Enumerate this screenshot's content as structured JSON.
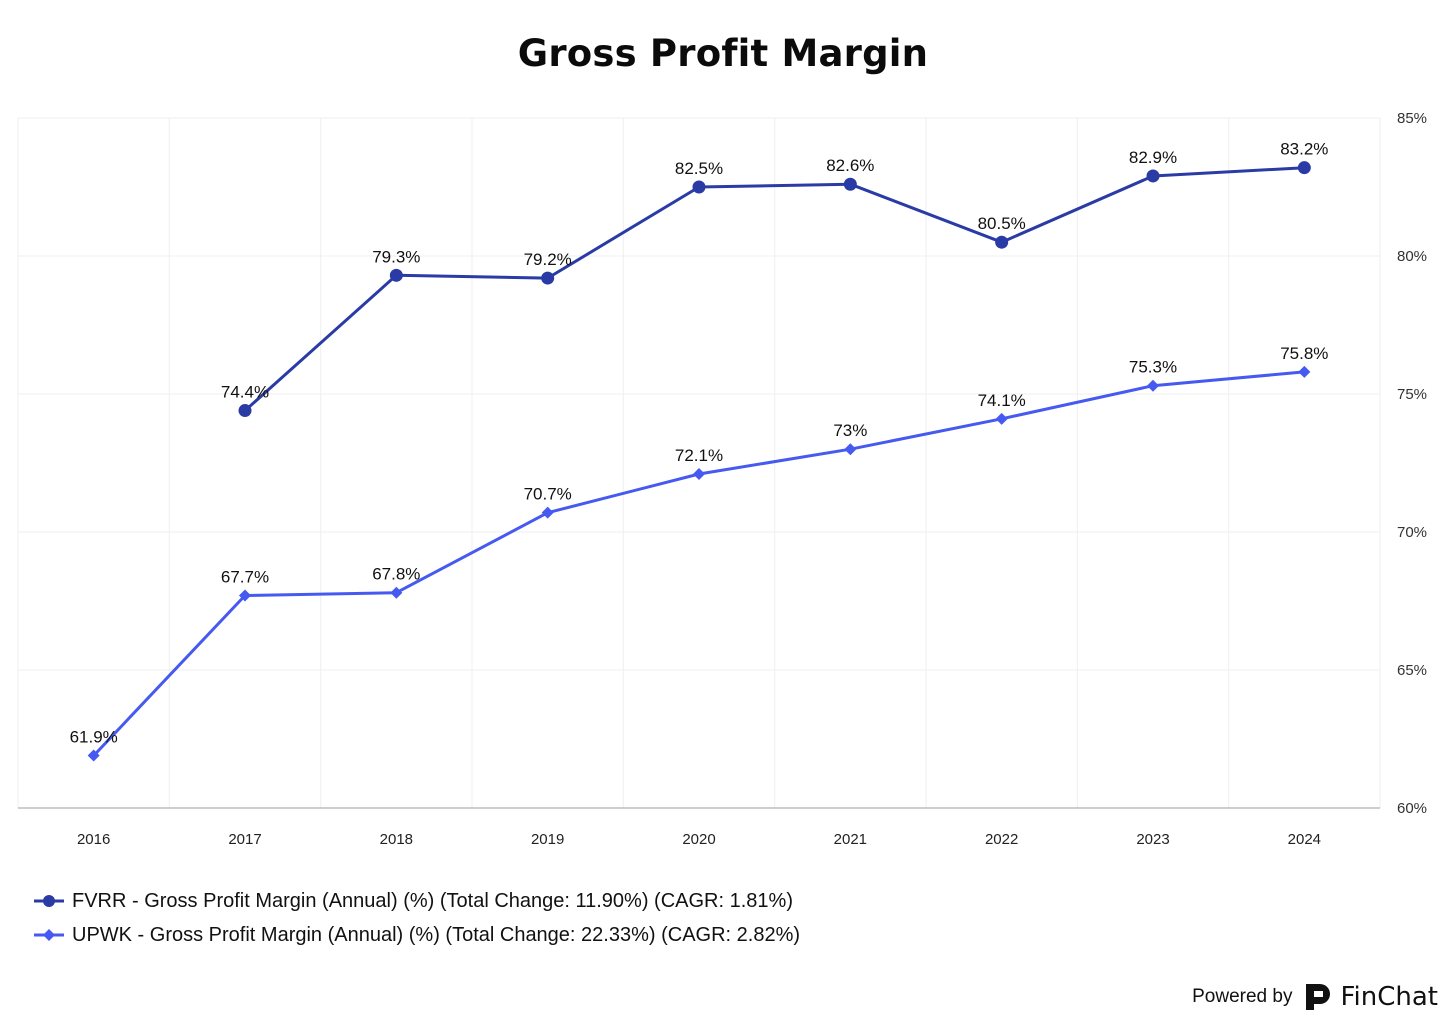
{
  "chart_data": {
    "type": "line",
    "title": "Gross Profit Margin",
    "categories": [
      "2016",
      "2017",
      "2018",
      "2019",
      "2020",
      "2021",
      "2022",
      "2023",
      "2024"
    ],
    "ylim": [
      60,
      85
    ],
    "y_ticks": [
      60,
      65,
      70,
      75,
      80,
      85
    ],
    "y_tick_labels": [
      "60%",
      "65%",
      "70%",
      "75%",
      "80%",
      "85%"
    ],
    "y_axis_side": "right",
    "grid": true,
    "legend_position": "bottom-left",
    "series": [
      {
        "name": "FVRR - Gross Profit Margin (Annual) (%) (Total Change: 11.90%) (CAGR: 1.81%)",
        "marker": "circle",
        "color": "#2a3ba6",
        "values": [
          null,
          74.4,
          79.3,
          79.2,
          82.5,
          82.6,
          80.5,
          82.9,
          83.2
        ],
        "labels": [
          null,
          "74.4%",
          "79.3%",
          "79.2%",
          "82.5%",
          "82.6%",
          "80.5%",
          "82.9%",
          "83.2%"
        ]
      },
      {
        "name": "UPWK - Gross Profit Margin (Annual) (%) (Total Change: 22.33%) (CAGR: 2.82%)",
        "marker": "diamond",
        "color": "#4659f0",
        "values": [
          61.9,
          67.7,
          67.8,
          70.7,
          72.1,
          73,
          74.1,
          75.3,
          75.8
        ],
        "labels": [
          "61.9%",
          "67.7%",
          "67.8%",
          "70.7%",
          "72.1%",
          "73%",
          "74.1%",
          "75.3%",
          "75.8%"
        ]
      }
    ]
  },
  "footer": {
    "powered_by": "Powered by",
    "brand": "FinChat",
    "brand_logo_icon": "finchat-logo-icon"
  }
}
